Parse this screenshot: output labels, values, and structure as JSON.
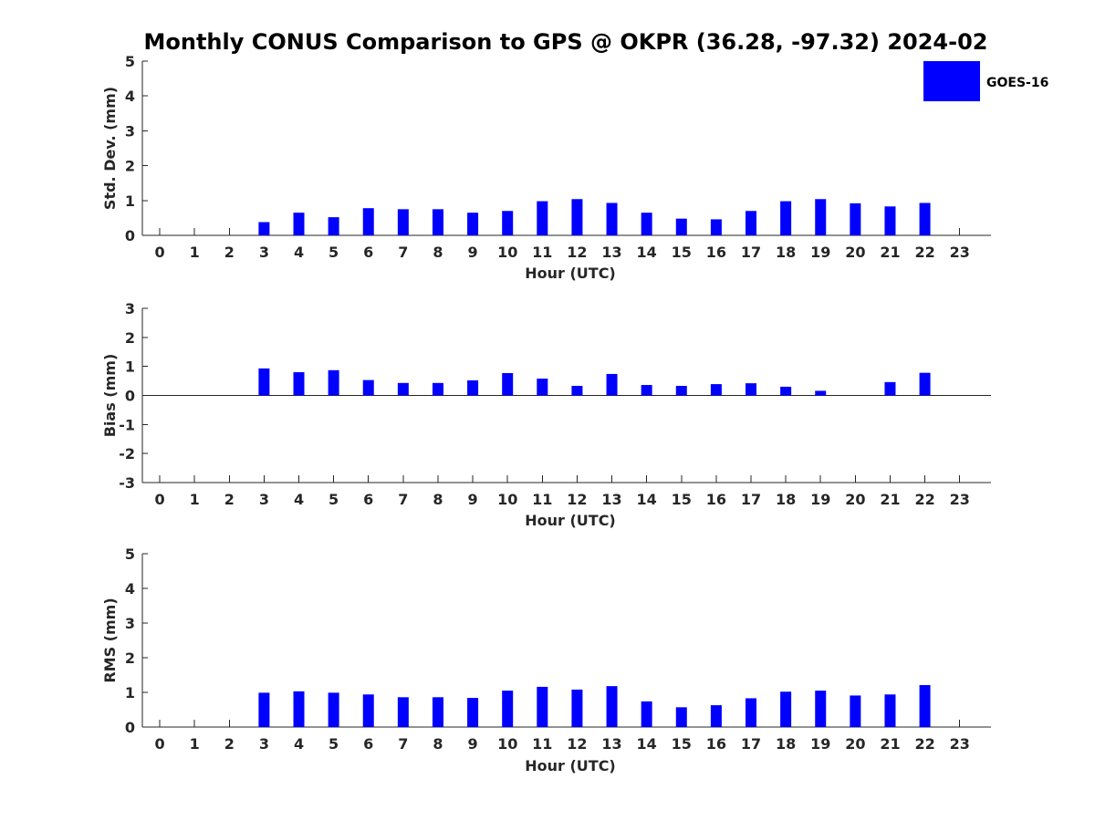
{
  "chart_data": {
    "title": "Monthly CONUS Comparison to GPS @ OKPR (36.28, -97.32) 2024-02",
    "legend": {
      "label": "GOES-16",
      "placement": "top-right"
    },
    "series_color": "#0000ff",
    "panels": [
      {
        "id": "std",
        "type": "bar",
        "ylabel": "Std. Dev. (mm)",
        "xlabel": "Hour (UTC)",
        "ylim": [
          0,
          5
        ],
        "yticks": [
          "0",
          "1",
          "2",
          "3",
          "4",
          "5"
        ],
        "categories": [
          "0",
          "1",
          "2",
          "3",
          "4",
          "5",
          "6",
          "7",
          "8",
          "9",
          "10",
          "11",
          "12",
          "13",
          "14",
          "15",
          "16",
          "17",
          "18",
          "19",
          "20",
          "21",
          "22",
          "23"
        ],
        "values": [
          null,
          null,
          null,
          0.38,
          0.65,
          0.52,
          0.78,
          0.75,
          0.75,
          0.65,
          0.7,
          0.98,
          1.04,
          0.93,
          0.65,
          0.48,
          0.46,
          0.7,
          0.98,
          1.04,
          0.92,
          0.83,
          0.93,
          null
        ]
      },
      {
        "id": "bias",
        "type": "bar",
        "ylabel": "Bias (mm)",
        "xlabel": "Hour (UTC)",
        "ylim": [
          -3,
          3
        ],
        "yticks": [
          "-3",
          "-2",
          "-1",
          "0",
          "1",
          "2",
          "3"
        ],
        "categories": [
          "0",
          "1",
          "2",
          "3",
          "4",
          "5",
          "6",
          "7",
          "8",
          "9",
          "10",
          "11",
          "12",
          "13",
          "14",
          "15",
          "16",
          "17",
          "18",
          "19",
          "20",
          "21",
          "22",
          "23"
        ],
        "values": [
          null,
          null,
          null,
          0.93,
          0.8,
          0.87,
          0.53,
          0.43,
          0.43,
          0.52,
          0.77,
          0.58,
          0.33,
          0.74,
          0.36,
          0.33,
          0.39,
          0.42,
          0.3,
          0.16,
          null,
          0.46,
          0.78,
          null
        ]
      },
      {
        "id": "rms",
        "type": "bar",
        "ylabel": "RMS (mm)",
        "xlabel": "Hour (UTC)",
        "ylim": [
          0,
          5
        ],
        "yticks": [
          "0",
          "1",
          "2",
          "3",
          "4",
          "5"
        ],
        "categories": [
          "0",
          "1",
          "2",
          "3",
          "4",
          "5",
          "6",
          "7",
          "8",
          "9",
          "10",
          "11",
          "12",
          "13",
          "14",
          "15",
          "16",
          "17",
          "18",
          "19",
          "20",
          "21",
          "22",
          "23"
        ],
        "values": [
          null,
          null,
          null,
          0.99,
          1.03,
          0.99,
          0.94,
          0.86,
          0.86,
          0.84,
          1.05,
          1.16,
          1.08,
          1.18,
          0.74,
          0.57,
          0.63,
          0.83,
          1.02,
          1.05,
          0.91,
          0.94,
          1.21,
          null
        ]
      }
    ]
  }
}
